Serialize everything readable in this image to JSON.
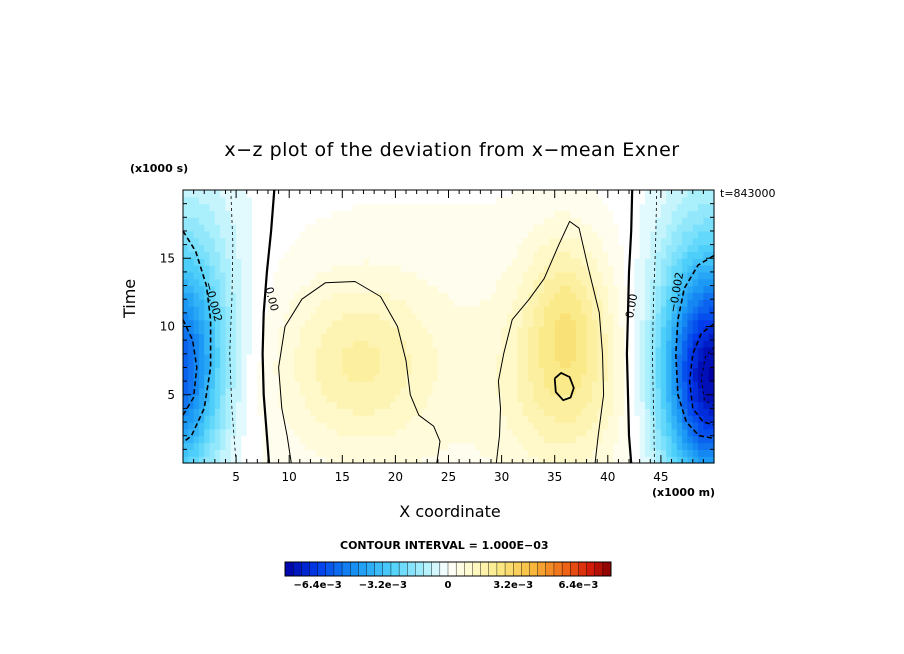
{
  "chart_data": {
    "type": "heatmap",
    "title": "x−z plot of the deviation from x−mean Exner",
    "xlabel": "X coordinate",
    "ylabel": "Time",
    "x_unit": "(x1000 m)",
    "y_unit": "(x1000 s)",
    "time_stamp": "t=843000",
    "xlim": [
      0,
      50
    ],
    "ylim": [
      0,
      20
    ],
    "x_ticks": [
      5,
      10,
      15,
      20,
      25,
      30,
      35,
      40,
      45
    ],
    "x_tick_labels": [
      "5",
      "10",
      "15",
      "20",
      "25",
      "30",
      "35",
      "40",
      "45"
    ],
    "y_ticks": [
      5,
      10,
      15
    ],
    "y_tick_labels": [
      "5",
      "10",
      "15"
    ],
    "contour_interval_text": "CONTOUR INTERVAL = 1.000E−03",
    "contour_labels": [
      {
        "text": "0.00",
        "x": 8.3,
        "y": 12.0
      },
      {
        "text": "0.00",
        "x": 42.3,
        "y": 11.5
      },
      {
        "text": "−0.002",
        "x": 2.8,
        "y": 11.8
      },
      {
        "text": "−0.002",
        "x": 46.5,
        "y": 12.5
      }
    ],
    "features": [
      {
        "kind": "min",
        "x": 0.5,
        "y": 6.0,
        "value": -0.0045
      },
      {
        "kind": "min",
        "x": 48.5,
        "y": 6.0,
        "value": -0.0065
      },
      {
        "kind": "max",
        "x": 16.5,
        "y": 7.5,
        "value": 0.0016
      },
      {
        "kind": "max",
        "x": 36.0,
        "y": 5.8,
        "value": 0.0022
      }
    ],
    "colorbar": {
      "min": -0.008,
      "max": 0.008,
      "tick_values": [
        -0.0064,
        -0.0032,
        0,
        0.0032,
        0.0064
      ],
      "tick_labels": [
        "−6.4e−3",
        "−3.2e−3",
        "0",
        "3.2e−3",
        "6.4e−3"
      ]
    }
  }
}
